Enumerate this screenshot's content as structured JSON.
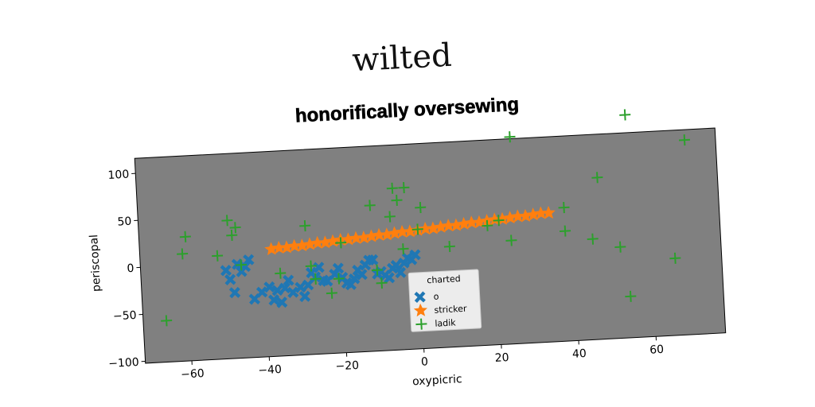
{
  "figure_title": "wilted",
  "chart_data": {
    "type": "scatter",
    "title": "honorifically oversewing",
    "xlabel": "oxypicric",
    "ylabel": "periscopal",
    "xlim": [
      -72,
      78
    ],
    "ylim": [
      -102,
      116
    ],
    "xticks": [
      -60,
      -40,
      -20,
      0,
      20,
      40,
      60
    ],
    "yticks": [
      -100,
      -50,
      0,
      50,
      100
    ],
    "grid": false,
    "plot_background": "#808080",
    "legend": {
      "title": "charted",
      "placement": "lower-center"
    },
    "series": [
      {
        "name": "o",
        "marker": "X",
        "color": "#1f77b4",
        "points": [
          [
            -50,
            -8
          ],
          [
            -49,
            -18
          ],
          [
            -48,
            -32
          ],
          [
            -47,
            -2
          ],
          [
            -45,
            -5
          ],
          [
            -43,
            -40
          ],
          [
            -41,
            -33
          ],
          [
            -39,
            -28
          ],
          [
            -37,
            -32
          ],
          [
            -35,
            -30
          ],
          [
            -33,
            -35
          ],
          [
            -31,
            -30
          ],
          [
            -30,
            -40
          ],
          [
            -29,
            -28
          ],
          [
            -28,
            -15
          ],
          [
            -27,
            -20
          ],
          [
            -26,
            -10
          ],
          [
            -25,
            -24
          ],
          [
            -24,
            -25
          ],
          [
            -22,
            -18
          ],
          [
            -20,
            -22
          ],
          [
            -19,
            -28
          ],
          [
            -18,
            -30
          ],
          [
            -17,
            -24
          ],
          [
            -16,
            -15
          ],
          [
            -15,
            -20
          ],
          [
            -14,
            -10
          ],
          [
            -13,
            -5
          ],
          [
            -12,
            -5
          ],
          [
            -11,
            -20
          ],
          [
            -10,
            -18
          ],
          [
            -9,
            -22
          ],
          [
            -8,
            -25
          ],
          [
            -7,
            -15
          ],
          [
            -6,
            -12
          ],
          [
            -5,
            -20
          ],
          [
            -4,
            -10
          ],
          [
            -3,
            -5
          ],
          [
            -2,
            -7
          ],
          [
            -1,
            -2
          ],
          [
            -44,
            2
          ],
          [
            -46,
            -10
          ],
          [
            -38,
            -42
          ],
          [
            -36,
            -45
          ],
          [
            -34,
            -22
          ],
          [
            -21,
            -12
          ]
        ]
      },
      {
        "name": "stricker",
        "marker": "star",
        "color": "#ff7f0e",
        "points": [
          [
            -38,
            12
          ],
          [
            -36,
            13
          ],
          [
            -34,
            13
          ],
          [
            -32,
            14
          ],
          [
            -30,
            14
          ],
          [
            -28,
            15
          ],
          [
            -26,
            16
          ],
          [
            -24,
            16
          ],
          [
            -22,
            17
          ],
          [
            -20,
            18
          ],
          [
            -18,
            18
          ],
          [
            -16,
            19
          ],
          [
            -14,
            19
          ],
          [
            -12,
            20
          ],
          [
            -10,
            21
          ],
          [
            -8,
            21
          ],
          [
            -6,
            22
          ],
          [
            -4,
            23
          ],
          [
            -2,
            23
          ],
          [
            0,
            24
          ],
          [
            2,
            25
          ],
          [
            4,
            25
          ],
          [
            6,
            26
          ],
          [
            8,
            27
          ],
          [
            10,
            27
          ],
          [
            12,
            28
          ],
          [
            14,
            29
          ],
          [
            16,
            29
          ],
          [
            18,
            30
          ],
          [
            20,
            31
          ],
          [
            22,
            31
          ],
          [
            24,
            32
          ],
          [
            26,
            33
          ],
          [
            28,
            33
          ],
          [
            30,
            34
          ],
          [
            32,
            35
          ],
          [
            34,
            35
          ]
        ]
      },
      {
        "name": "ladik",
        "marker": "plus",
        "color": "#2ca02c",
        "points": [
          [
            -66,
            -58
          ],
          [
            -61,
            12
          ],
          [
            -60,
            30
          ],
          [
            -52,
            8
          ],
          [
            -49,
            45
          ],
          [
            -48,
            29
          ],
          [
            -47,
            37
          ],
          [
            -46,
            -3
          ],
          [
            -36,
            -14
          ],
          [
            -29,
            35
          ],
          [
            -28,
            -8
          ],
          [
            -27,
            -22
          ],
          [
            -23,
            -38
          ],
          [
            -21,
            -23
          ],
          [
            -20,
            15
          ],
          [
            -12,
            53
          ],
          [
            -11,
            -16
          ],
          [
            -10,
            -30
          ],
          [
            -7,
            40
          ],
          [
            -6,
            70
          ],
          [
            -5,
            57
          ],
          [
            -4,
            5
          ],
          [
            -3,
            70
          ],
          [
            0,
            25
          ],
          [
            1,
            48
          ],
          [
            8,
            5
          ],
          [
            18,
            25
          ],
          [
            21,
            30
          ],
          [
            24,
            8
          ],
          [
            25,
            118
          ],
          [
            38,
            40
          ],
          [
            38,
            15
          ],
          [
            45,
            5
          ],
          [
            47,
            70
          ],
          [
            52,
            -5
          ],
          [
            54,
            -58
          ],
          [
            55,
            135
          ],
          [
            66,
            -20
          ],
          [
            70,
            105
          ]
        ]
      }
    ]
  }
}
